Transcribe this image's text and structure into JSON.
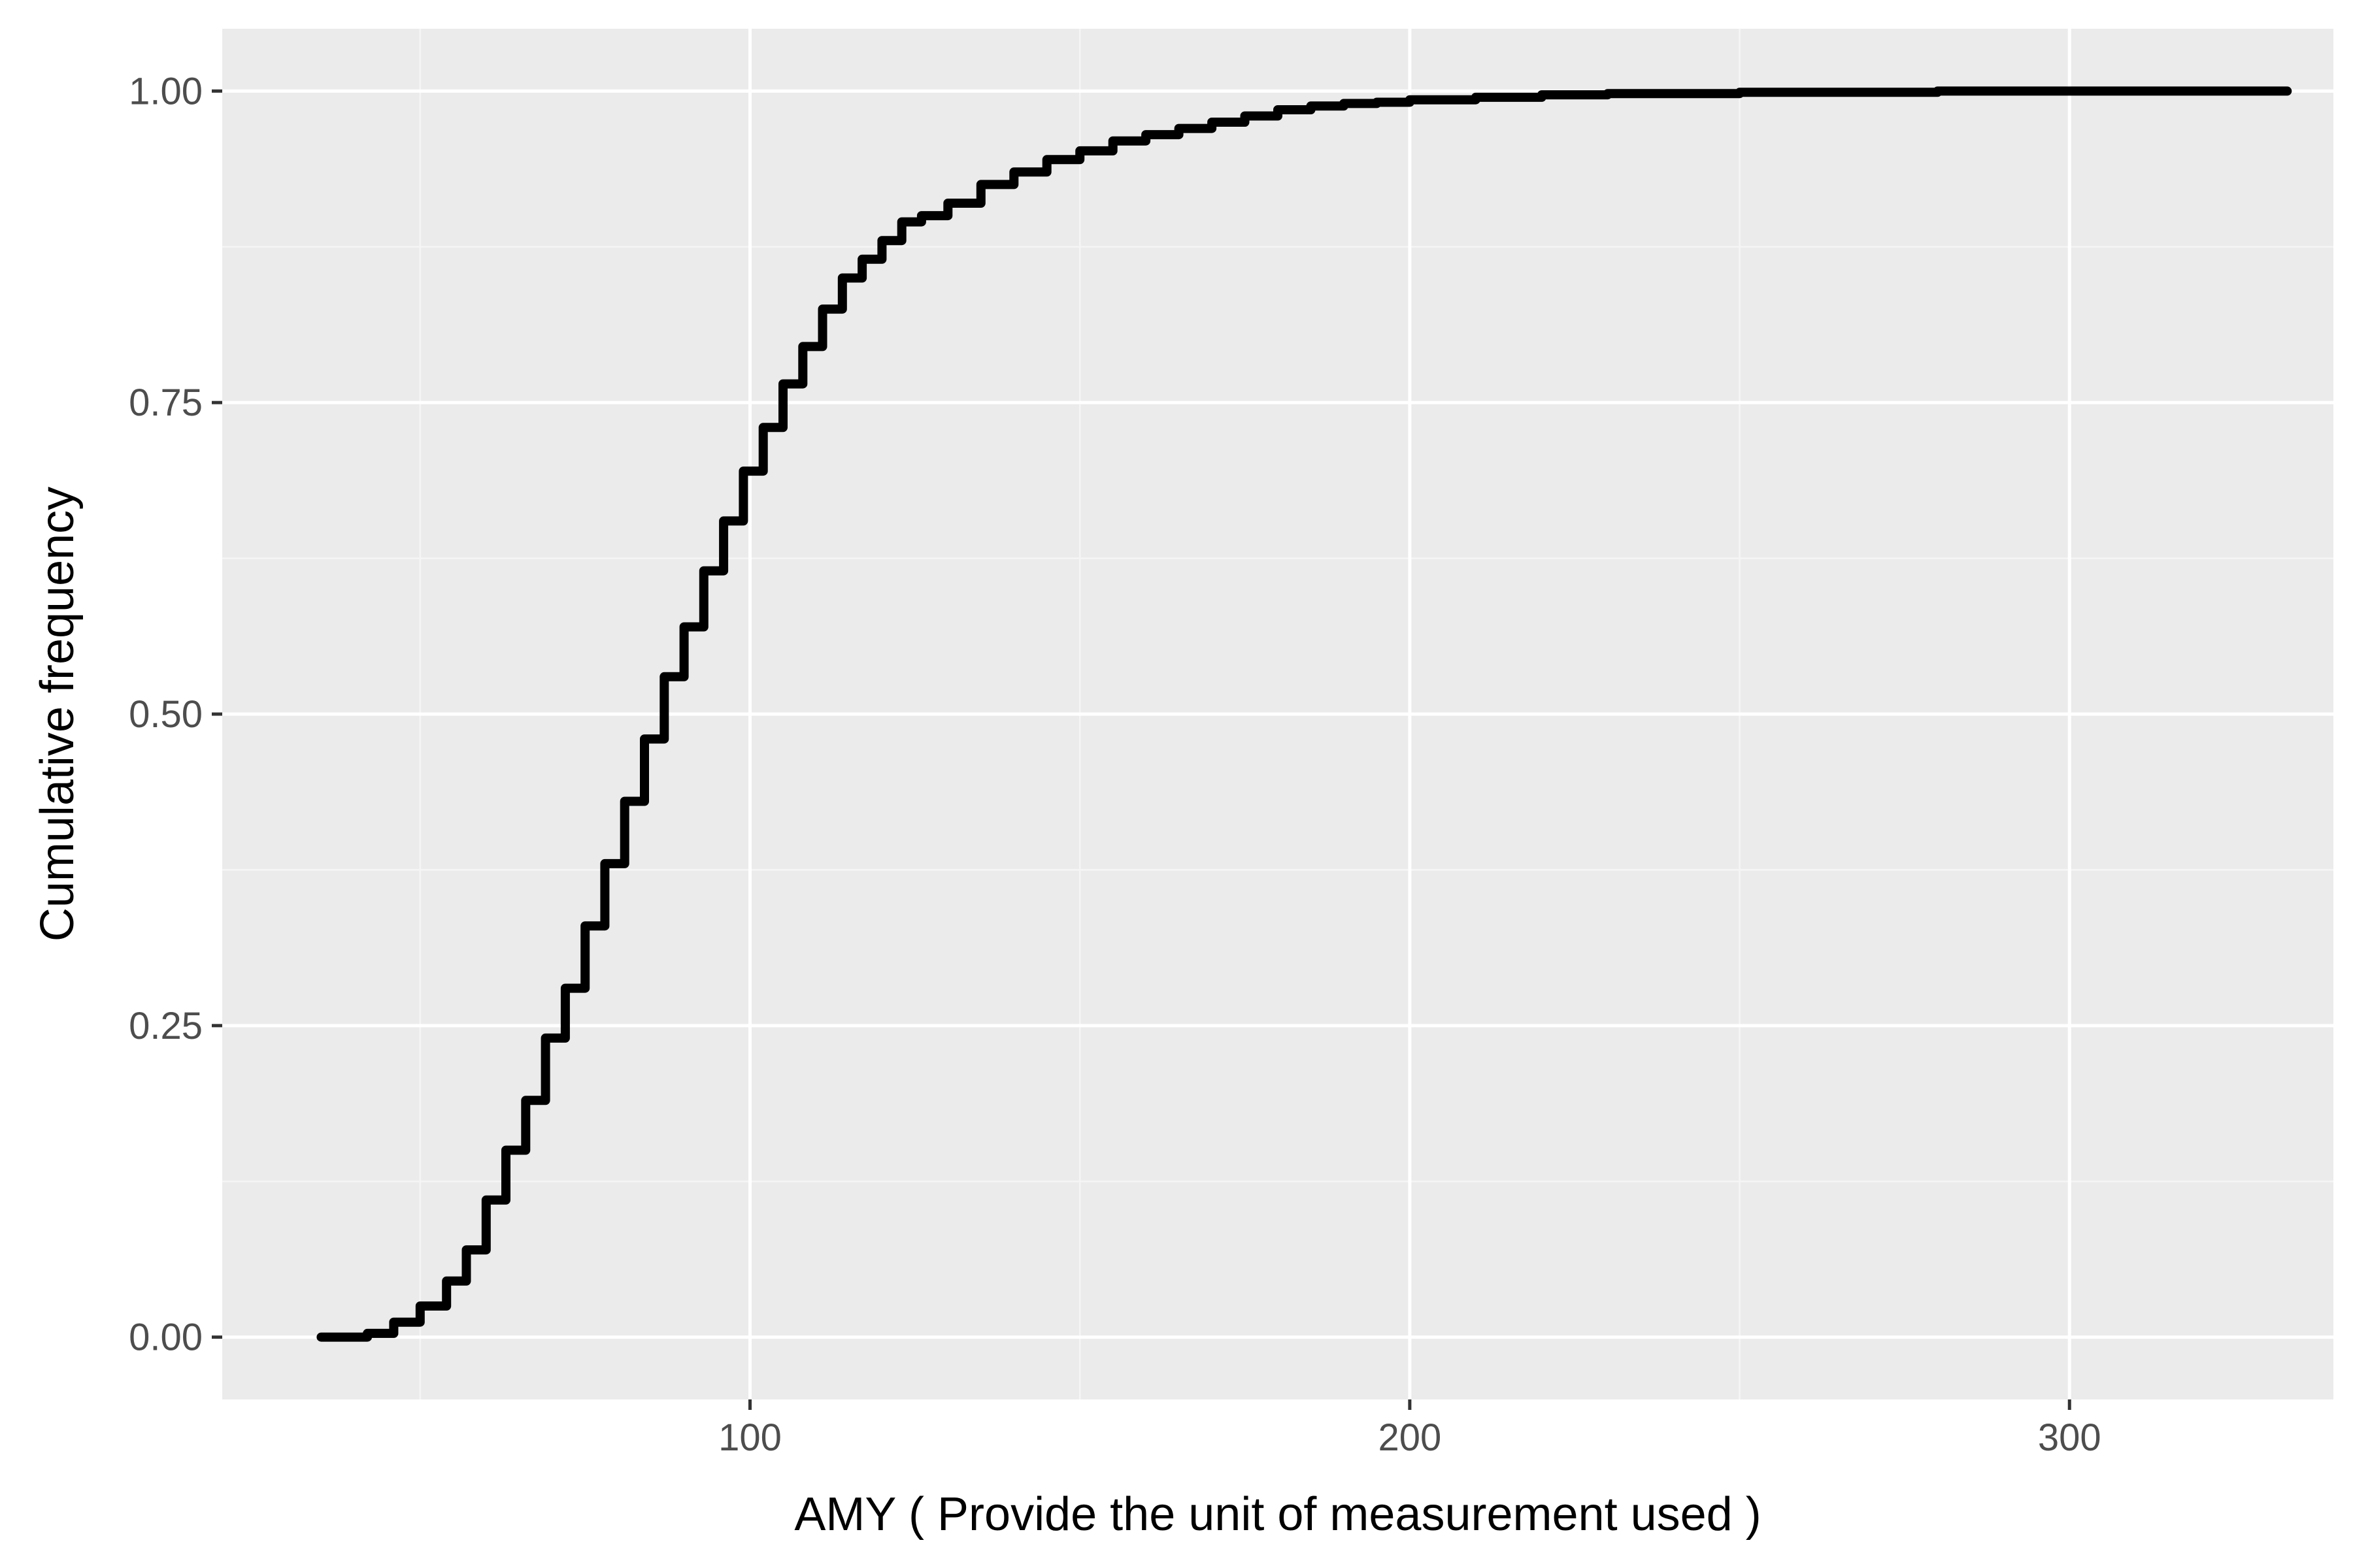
{
  "colors": {
    "panel_background": "#ebebeb",
    "grid_major": "#ffffff",
    "grid_minor": "#f5f5f5",
    "tick": "#333333",
    "tick_label": "#4d4d4d",
    "line": "#000000"
  },
  "chart_data": {
    "type": "line",
    "title": "",
    "xlabel": "AMY ( Provide the unit of measurement used )",
    "ylabel": "Cumulative frequency",
    "xlim": [
      20,
      340
    ],
    "ylim": [
      -0.05,
      1.05
    ],
    "xticks": [
      100,
      200,
      300
    ],
    "xtick_labels": [
      "100",
      "200",
      "300"
    ],
    "yticks": [
      0,
      0.25,
      0.5,
      0.75,
      1.0
    ],
    "ytick_labels": [
      "0.00",
      "0.25",
      "0.50",
      "0.75",
      "1.00"
    ],
    "grid": true,
    "legend": "none",
    "series": [
      {
        "x": [
          35,
          42,
          46,
          50,
          54,
          57,
          60,
          63,
          66,
          69,
          72,
          75,
          78,
          81,
          84,
          87,
          90,
          93,
          96,
          99,
          102,
          105,
          108,
          111,
          114,
          117,
          120,
          123,
          126,
          130,
          135,
          140,
          145,
          150,
          155,
          160,
          165,
          170,
          175,
          180,
          185,
          190,
          195,
          200,
          210,
          220,
          230,
          250,
          280,
          300,
          320,
          333
        ],
        "y": [
          0.0,
          0.003,
          0.012,
          0.025,
          0.045,
          0.07,
          0.11,
          0.15,
          0.19,
          0.24,
          0.28,
          0.33,
          0.38,
          0.43,
          0.48,
          0.53,
          0.57,
          0.615,
          0.655,
          0.695,
          0.73,
          0.765,
          0.795,
          0.825,
          0.85,
          0.865,
          0.88,
          0.895,
          0.9,
          0.91,
          0.925,
          0.935,
          0.945,
          0.952,
          0.96,
          0.965,
          0.97,
          0.975,
          0.98,
          0.985,
          0.988,
          0.99,
          0.991,
          0.993,
          0.995,
          0.997,
          0.998,
          0.999,
          1.0,
          1.0,
          1.0,
          1.0
        ]
      }
    ]
  }
}
